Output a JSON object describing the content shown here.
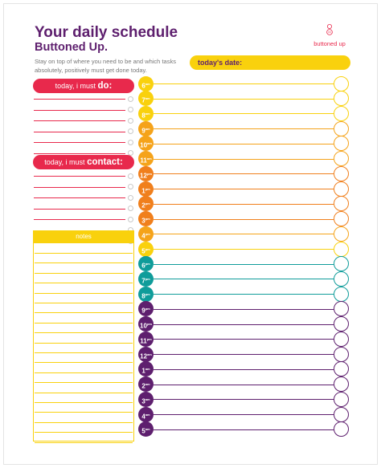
{
  "header": {
    "title_part1": "Your ",
    "title_part2": "daily schedule",
    "subtitle": "Buttoned Up.",
    "intro": "Stay on top of where you need to be and which tasks absolutely, positively must get done today.",
    "brand": "buttoned up"
  },
  "date_label": "today's date:",
  "todo": {
    "prefix": "today, i must ",
    "strong": "do:",
    "line_count": 7
  },
  "contact": {
    "prefix": "today, i must ",
    "strong": "contact:",
    "line_count": 7
  },
  "notes": {
    "label": "notes",
    "line_count": 20
  },
  "hours": [
    {
      "label": "6",
      "suffix": "am",
      "color": "#f9d10d"
    },
    {
      "label": "7",
      "suffix": "am",
      "color": "#f9d10d"
    },
    {
      "label": "8",
      "suffix": "am",
      "color": "#f9d10d"
    },
    {
      "label": "9",
      "suffix": "am",
      "color": "#f5a31a"
    },
    {
      "label": "10",
      "suffix": "am",
      "color": "#f5a31a"
    },
    {
      "label": "11",
      "suffix": "am",
      "color": "#f5a31a"
    },
    {
      "label": "12",
      "suffix": "pm",
      "color": "#f07f1c"
    },
    {
      "label": "1",
      "suffix": "pm",
      "color": "#f07f1c"
    },
    {
      "label": "2",
      "suffix": "pm",
      "color": "#f07f1c"
    },
    {
      "label": "3",
      "suffix": "pm",
      "color": "#f07f1c"
    },
    {
      "label": "4",
      "suffix": "pm",
      "color": "#f5a31a"
    },
    {
      "label": "5",
      "suffix": "pm",
      "color": "#f9d10d"
    },
    {
      "label": "6",
      "suffix": "pm",
      "color": "#0f9c9a"
    },
    {
      "label": "7",
      "suffix": "pm",
      "color": "#0f9c9a"
    },
    {
      "label": "8",
      "suffix": "pm",
      "color": "#0f9c9a"
    },
    {
      "label": "9",
      "suffix": "pm",
      "color": "#5e1f6e"
    },
    {
      "label": "10",
      "suffix": "pm",
      "color": "#5e1f6e"
    },
    {
      "label": "11",
      "suffix": "pm",
      "color": "#5e1f6e"
    },
    {
      "label": "12",
      "suffix": "am",
      "color": "#5e1f6e"
    },
    {
      "label": "1",
      "suffix": "am",
      "color": "#5e1f6e"
    },
    {
      "label": "2",
      "suffix": "am",
      "color": "#5e1f6e"
    },
    {
      "label": "3",
      "suffix": "am",
      "color": "#5e1f6e"
    },
    {
      "label": "4",
      "suffix": "am",
      "color": "#5e1f6e"
    },
    {
      "label": "5",
      "suffix": "am",
      "color": "#5e1f6e"
    }
  ],
  "colors": {
    "purple": "#5e1f6e",
    "pink": "#e8294c",
    "yellow": "#f9d10d",
    "light_orange": "#f5a31a",
    "orange": "#f07f1c",
    "teal": "#0f9c9a"
  }
}
